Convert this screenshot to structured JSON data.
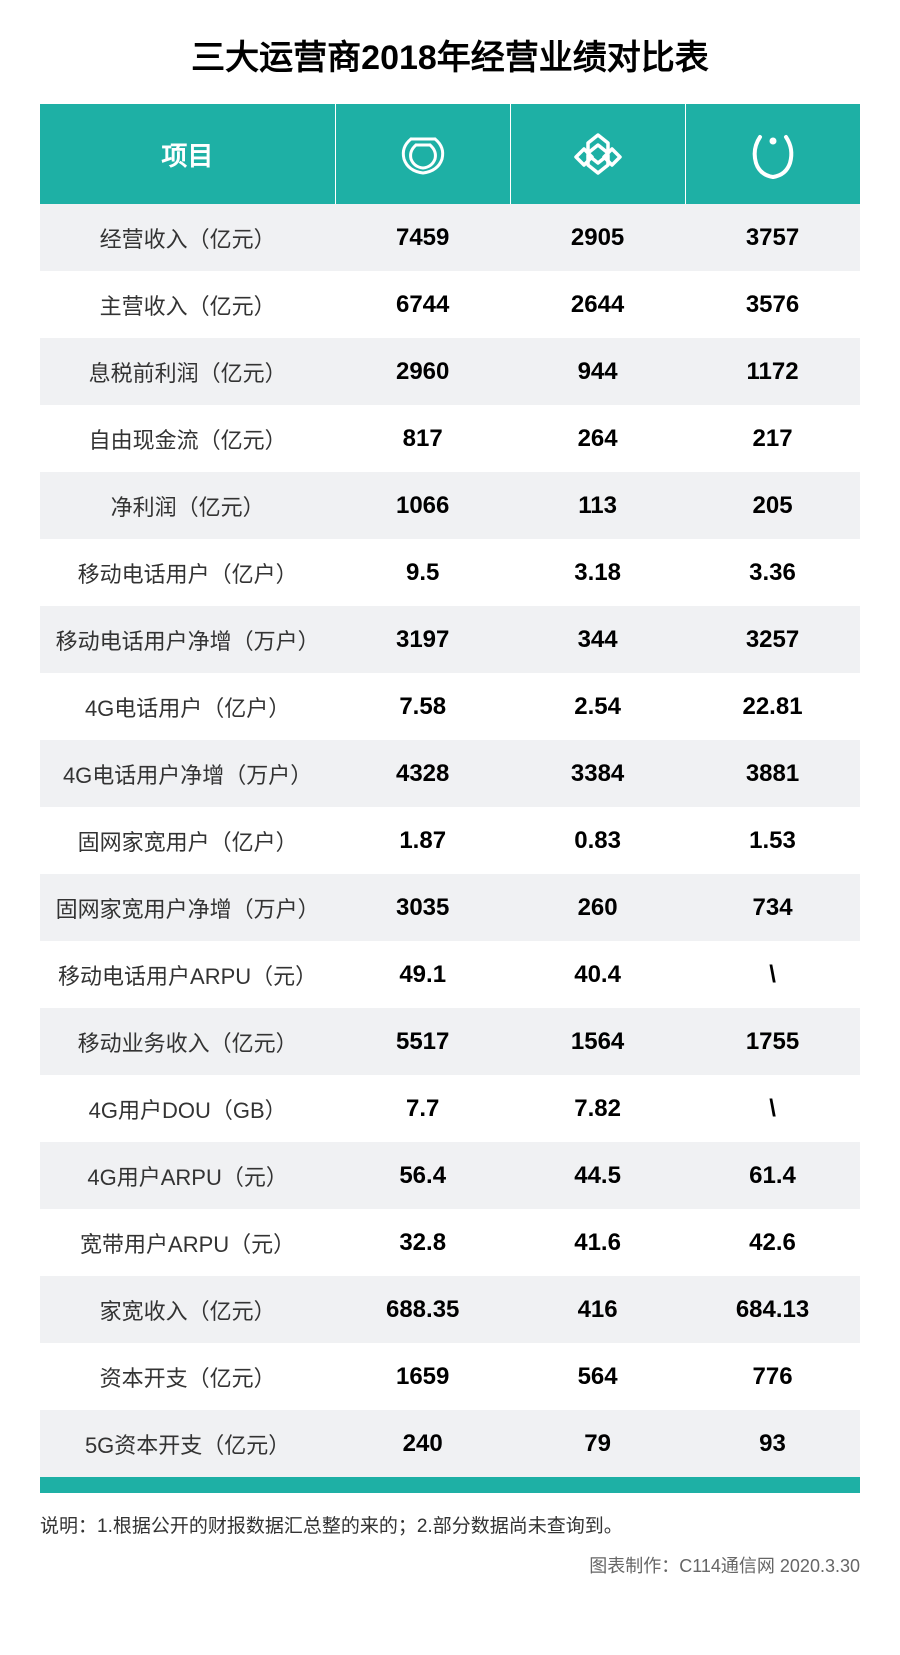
{
  "title": "三大运营商2018年经营业绩对比表",
  "header": {
    "label_col": "项目",
    "carriers": [
      "china-mobile",
      "china-unicom",
      "china-telecom"
    ]
  },
  "colors": {
    "header_bg": "#1eb0a5",
    "header_text": "#ffffff",
    "row_even": "#ffffff",
    "row_odd": "#f0f1f3",
    "text": "#333333",
    "value_text": "#000000"
  },
  "rows": [
    {
      "label": "经营收入（亿元）",
      "v1": "7459",
      "v2": "2905",
      "v3": "3757"
    },
    {
      "label": "主营收入（亿元）",
      "v1": "6744",
      "v2": "2644",
      "v3": "3576"
    },
    {
      "label": "息税前利润（亿元）",
      "v1": "2960",
      "v2": "944",
      "v3": "1172"
    },
    {
      "label": "自由现金流（亿元）",
      "v1": "817",
      "v2": "264",
      "v3": "217"
    },
    {
      "label": "净利润（亿元）",
      "v1": "1066",
      "v2": "113",
      "v3": "205"
    },
    {
      "label": "移动电话用户（亿户）",
      "v1": "9.5",
      "v2": "3.18",
      "v3": "3.36"
    },
    {
      "label": "移动电话用户净增（万户）",
      "v1": "3197",
      "v2": "344",
      "v3": "3257"
    },
    {
      "label": "4G电话用户（亿户）",
      "v1": "7.58",
      "v2": "2.54",
      "v3": "22.81"
    },
    {
      "label": "4G电话用户净增（万户）",
      "v1": "4328",
      "v2": "3384",
      "v3": "3881"
    },
    {
      "label": "固网家宽用户（亿户）",
      "v1": "1.87",
      "v2": "0.83",
      "v3": "1.53"
    },
    {
      "label": "固网家宽用户净增（万户）",
      "v1": "3035",
      "v2": "260",
      "v3": "734"
    },
    {
      "label": "移动电话用户ARPU（元）",
      "v1": "49.1",
      "v2": "40.4",
      "v3": "\\"
    },
    {
      "label": "移动业务收入（亿元）",
      "v1": "5517",
      "v2": "1564",
      "v3": "1755"
    },
    {
      "label": "4G用户DOU（GB）",
      "v1": "7.7",
      "v2": "7.82",
      "v3": "\\"
    },
    {
      "label": "4G用户ARPU（元）",
      "v1": "56.4",
      "v2": "44.5",
      "v3": "61.4"
    },
    {
      "label": "宽带用户ARPU（元）",
      "v1": "32.8",
      "v2": "41.6",
      "v3": "42.6"
    },
    {
      "label": "家宽收入（亿元）",
      "v1": "688.35",
      "v2": "416",
      "v3": "684.13"
    },
    {
      "label": "资本开支（亿元）",
      "v1": "1659",
      "v2": "564",
      "v3": "776"
    },
    {
      "label": "5G资本开支（亿元）",
      "v1": "240",
      "v2": "79",
      "v3": "93"
    }
  ],
  "note": "说明：1.根据公开的财报数据汇总整的来的；2.部分数据尚未查询到。",
  "credit": "图表制作：C114通信网 2020.3.30"
}
